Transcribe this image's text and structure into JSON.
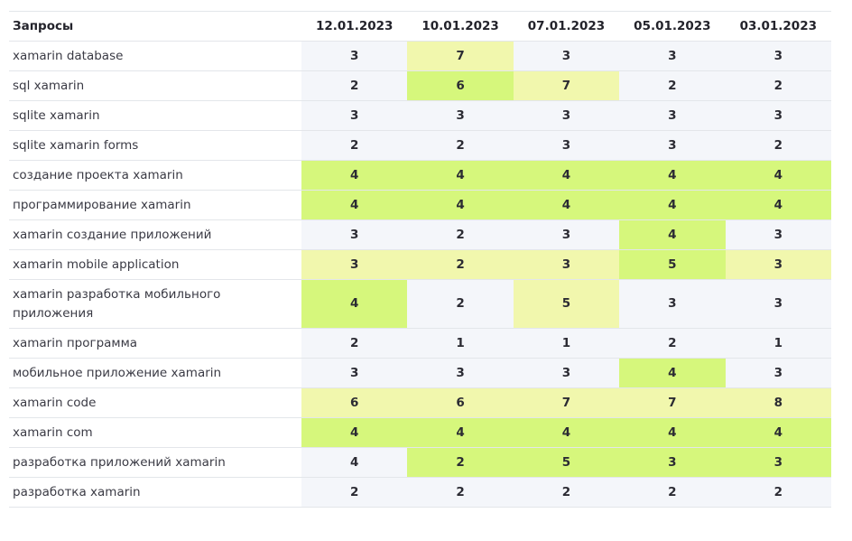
{
  "colors": {
    "neutral": "#f4f6fa",
    "light": "#f1f7ad",
    "green": "#d6f77c"
  },
  "header": {
    "query_label": "Запросы",
    "dates": [
      "12.01.2023",
      "10.01.2023",
      "07.01.2023",
      "05.01.2023",
      "03.01.2023"
    ]
  },
  "rows": [
    {
      "query": "xamarin database",
      "values": [
        "3",
        "7",
        "3",
        "3",
        "3"
      ],
      "fills": [
        "n",
        "l",
        "n",
        "n",
        "n"
      ]
    },
    {
      "query": "sql xamarin",
      "values": [
        "2",
        "6",
        "7",
        "2",
        "2"
      ],
      "fills": [
        "n",
        "g",
        "l",
        "n",
        "n"
      ]
    },
    {
      "query": "sqlite xamarin",
      "values": [
        "3",
        "3",
        "3",
        "3",
        "3"
      ],
      "fills": [
        "n",
        "n",
        "n",
        "n",
        "n"
      ]
    },
    {
      "query": "sqlite xamarin forms",
      "values": [
        "2",
        "2",
        "3",
        "3",
        "2"
      ],
      "fills": [
        "n",
        "n",
        "n",
        "n",
        "n"
      ]
    },
    {
      "query": "создание проекта xamarin",
      "values": [
        "4",
        "4",
        "4",
        "4",
        "4"
      ],
      "fills": [
        "g",
        "g",
        "g",
        "g",
        "g"
      ]
    },
    {
      "query": "программирование xamarin",
      "values": [
        "4",
        "4",
        "4",
        "4",
        "4"
      ],
      "fills": [
        "g",
        "g",
        "g",
        "g",
        "g"
      ]
    },
    {
      "query": "xamarin создание приложений",
      "values": [
        "3",
        "2",
        "3",
        "4",
        "3"
      ],
      "fills": [
        "n",
        "n",
        "n",
        "g",
        "n"
      ]
    },
    {
      "query": "xamarin mobile application",
      "values": [
        "3",
        "2",
        "3",
        "5",
        "3"
      ],
      "fills": [
        "l",
        "l",
        "l",
        "g",
        "l"
      ]
    },
    {
      "query": "xamarin разработка мобильного приложения",
      "values": [
        "4",
        "2",
        "5",
        "3",
        "3"
      ],
      "fills": [
        "g",
        "n",
        "l",
        "n",
        "n"
      ]
    },
    {
      "query": "xamarin программа",
      "values": [
        "2",
        "1",
        "1",
        "2",
        "1"
      ],
      "fills": [
        "n",
        "n",
        "n",
        "n",
        "n"
      ]
    },
    {
      "query": "мобильное приложение xamarin",
      "values": [
        "3",
        "3",
        "3",
        "4",
        "3"
      ],
      "fills": [
        "n",
        "n",
        "n",
        "g",
        "n"
      ]
    },
    {
      "query": "xamarin code",
      "values": [
        "6",
        "6",
        "7",
        "7",
        "8"
      ],
      "fills": [
        "l",
        "l",
        "l",
        "l",
        "l"
      ]
    },
    {
      "query": "xamarin com",
      "values": [
        "4",
        "4",
        "4",
        "4",
        "4"
      ],
      "fills": [
        "g",
        "g",
        "g",
        "g",
        "g"
      ]
    },
    {
      "query": "разработка приложений xamarin",
      "values": [
        "4",
        "2",
        "5",
        "3",
        "3"
      ],
      "fills": [
        "n",
        "g",
        "g",
        "g",
        "g"
      ]
    },
    {
      "query": "разработка xamarin",
      "values": [
        "2",
        "2",
        "2",
        "2",
        "2"
      ],
      "fills": [
        "n",
        "n",
        "n",
        "n",
        "n"
      ]
    }
  ]
}
